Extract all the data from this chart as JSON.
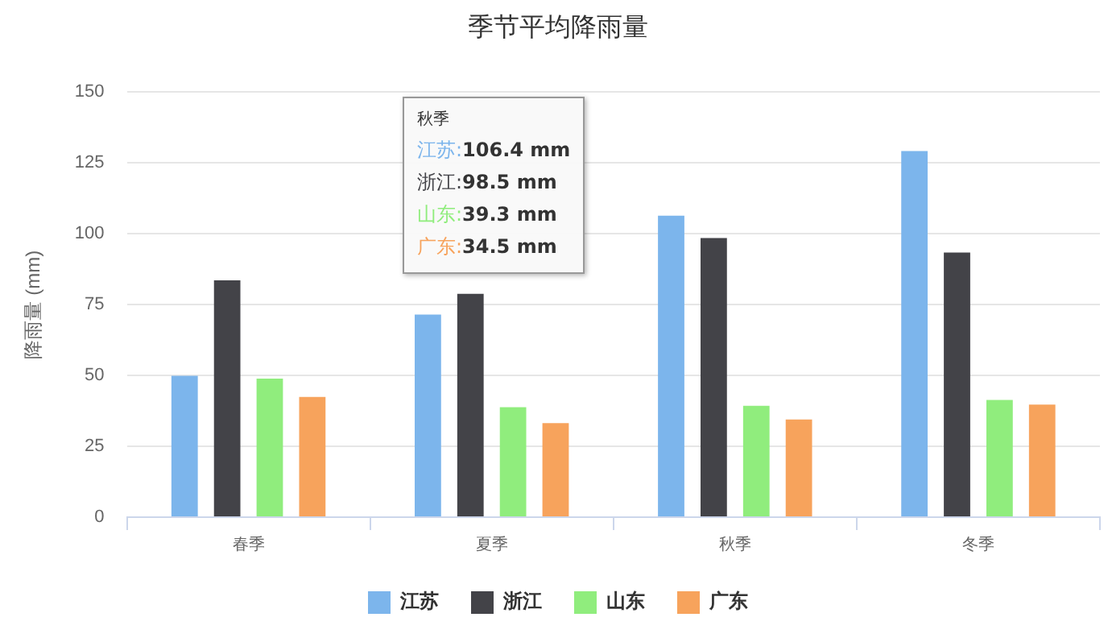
{
  "chart_data": {
    "type": "bar",
    "title": "季节平均降雨量",
    "ylabel": "降雨量 (mm)",
    "categories": [
      "春季",
      "夏季",
      "秋季",
      "冬季"
    ],
    "series": [
      {
        "name": "江苏",
        "color": "#7cb5ec",
        "values": [
          49.9,
          71.5,
          106.4,
          129.2
        ]
      },
      {
        "name": "浙江",
        "color": "#434348",
        "values": [
          83.6,
          78.8,
          98.5,
          93.4
        ]
      },
      {
        "name": "山东",
        "color": "#90ed7d",
        "values": [
          48.9,
          38.8,
          39.3,
          41.4
        ]
      },
      {
        "name": "广东",
        "color": "#f7a35c",
        "values": [
          42.4,
          33.2,
          34.5,
          39.7
        ]
      }
    ],
    "ylim": [
      0,
      150
    ],
    "yticks": [
      0,
      25,
      50,
      75,
      100,
      125,
      150
    ],
    "grid": "y",
    "legend": "bottom",
    "annotations": [
      "秋季",
      "江苏:106.4 mm",
      "浙江:98.5 mm",
      "山东:39.3 mm",
      "广东:34.5 mm"
    ]
  }
}
